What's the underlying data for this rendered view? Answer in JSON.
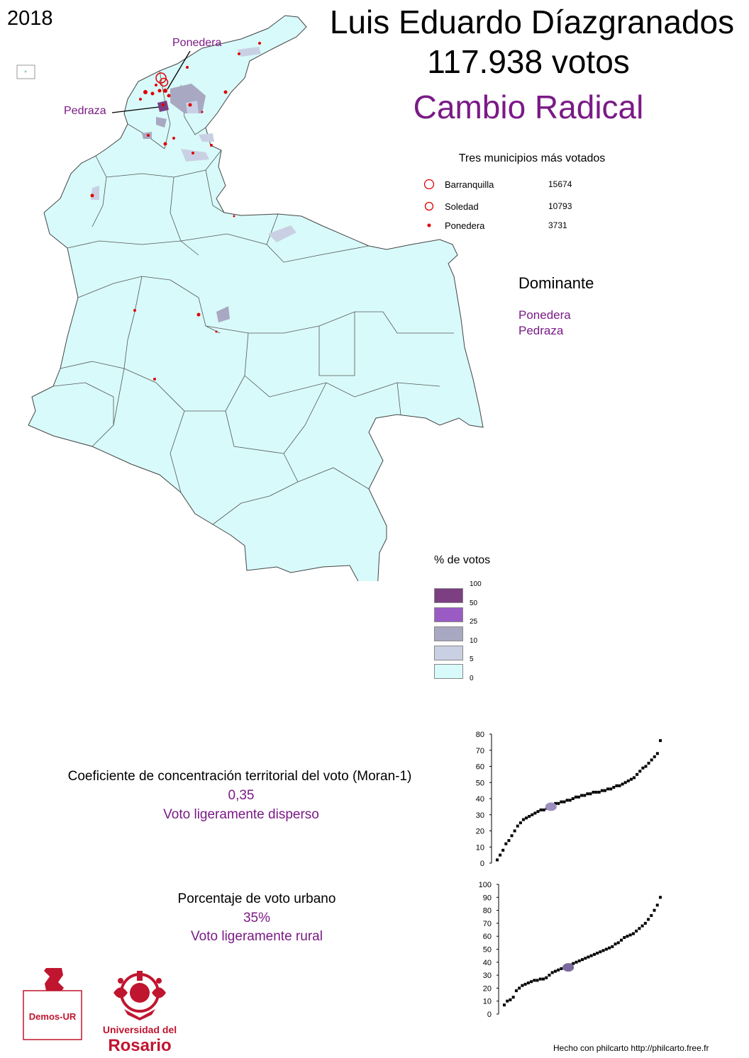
{
  "year": "2018",
  "candidate": "Luis Eduardo Díazgranados",
  "votes_label": "117.938 votos",
  "party": "Cambio Radical",
  "map_labels": {
    "ponedera": "Ponedera",
    "pedraza": "Pedraza"
  },
  "top_municipalities": {
    "title": "Tres municipios más votados",
    "items": [
      {
        "name": "Barranquilla",
        "value": "15674",
        "marker": "large-red-ring"
      },
      {
        "name": "Soledad",
        "value": "10793",
        "marker": "red-ring"
      },
      {
        "name": "Ponedera",
        "value": "3731",
        "marker": "red-dot"
      }
    ]
  },
  "dominant": {
    "title": "Dominante",
    "items": [
      "Ponedera",
      "Pedraza"
    ]
  },
  "legend": {
    "title": "% de votos",
    "thresholds": [
      "100",
      "50",
      "25",
      "10",
      "5",
      "0"
    ],
    "colors": [
      "#7b3f82",
      "#9a5bc4",
      "#a9a8c2",
      "#c9d0e4",
      "#d8fafa"
    ]
  },
  "moran": {
    "title": "Coeficiente de concentración territorial del voto (Moran-1)",
    "value": "0,35",
    "description": "Voto ligeramente disperso"
  },
  "urban": {
    "title": "Porcentaje de voto urbano",
    "value": "35%",
    "description": "Voto ligeramente rural"
  },
  "chart_data": [
    {
      "type": "scatter",
      "title": "",
      "xlabel": "",
      "ylabel": "",
      "ylim": [
        0,
        80
      ],
      "y_ticks": [
        "0",
        "10",
        "20",
        "30",
        "40",
        "50",
        "60",
        "70",
        "80"
      ],
      "y": [
        2,
        5,
        8,
        12,
        14,
        17,
        20,
        23,
        25,
        27,
        28,
        29,
        30,
        31,
        32,
        33,
        33,
        34,
        35,
        36,
        37,
        37,
        38,
        38,
        39,
        39,
        40,
        41,
        41,
        42,
        42,
        43,
        43,
        44,
        44,
        44,
        45,
        45,
        46,
        46,
        47,
        48,
        48,
        49,
        50,
        51,
        52,
        53,
        55,
        57,
        59,
        60,
        62,
        64,
        66,
        68,
        76
      ],
      "highlight": {
        "rank_fraction": 0.33,
        "value": 35
      }
    },
    {
      "type": "scatter",
      "title": "",
      "xlabel": "",
      "ylabel": "",
      "ylim": [
        0,
        100
      ],
      "y_ticks": [
        "0",
        "10",
        "20",
        "30",
        "40",
        "50",
        "60",
        "70",
        "80",
        "90",
        "100"
      ],
      "y": [
        7,
        10,
        11,
        13,
        18,
        20,
        22,
        23,
        24,
        25,
        26,
        26,
        27,
        27,
        28,
        30,
        32,
        33,
        34,
        35,
        36,
        37,
        38,
        39,
        40,
        41,
        42,
        43,
        44,
        45,
        46,
        47,
        48,
        49,
        50,
        51,
        52,
        54,
        55,
        57,
        59,
        60,
        61,
        62,
        64,
        66,
        68,
        70,
        73,
        76,
        80,
        84,
        90
      ],
      "highlight": {
        "rank_fraction": 0.41,
        "value": 36
      }
    }
  ],
  "logos": {
    "demos": "Demos-UR",
    "rosario_line1": "Universidad del",
    "rosario_line2": "Rosario"
  },
  "footer": "Hecho con philcarto http://philcarto.free.fr"
}
